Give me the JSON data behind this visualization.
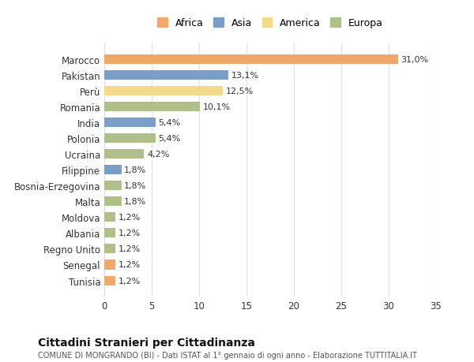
{
  "countries": [
    "Marocco",
    "Pakistan",
    "Perù",
    "Romania",
    "India",
    "Polonia",
    "Ucraina",
    "Filippine",
    "Bosnia-Erzegovina",
    "Malta",
    "Moldova",
    "Albania",
    "Regno Unito",
    "Senegal",
    "Tunisia"
  ],
  "values": [
    31.0,
    13.1,
    12.5,
    10.1,
    5.4,
    5.4,
    4.2,
    1.8,
    1.8,
    1.8,
    1.2,
    1.2,
    1.2,
    1.2,
    1.2
  ],
  "labels": [
    "31,0%",
    "13,1%",
    "12,5%",
    "10,1%",
    "5,4%",
    "5,4%",
    "4,2%",
    "1,8%",
    "1,8%",
    "1,8%",
    "1,2%",
    "1,2%",
    "1,2%",
    "1,2%",
    "1,2%"
  ],
  "continents": [
    "Africa",
    "Asia",
    "America",
    "Europa",
    "Asia",
    "Europa",
    "Europa",
    "Asia",
    "Europa",
    "Europa",
    "Europa",
    "Europa",
    "Europa",
    "Africa",
    "Africa"
  ],
  "colors": {
    "Africa": "#F0A96B",
    "Asia": "#7B9EC9",
    "America": "#F5D98B",
    "Europa": "#AEBF8A"
  },
  "legend_order": [
    "Africa",
    "Asia",
    "America",
    "Europa"
  ],
  "title": "Cittadini Stranieri per Cittadinanza",
  "subtitle": "COMUNE DI MONGRANDO (BI) - Dati ISTAT al 1° gennaio di ogni anno - Elaborazione TUTTITALIA.IT",
  "xlim": [
    0,
    35
  ],
  "xticks": [
    0,
    5,
    10,
    15,
    20,
    25,
    30,
    35
  ],
  "bg_color": "#FFFFFF",
  "grid_color": "#E0E0E0"
}
